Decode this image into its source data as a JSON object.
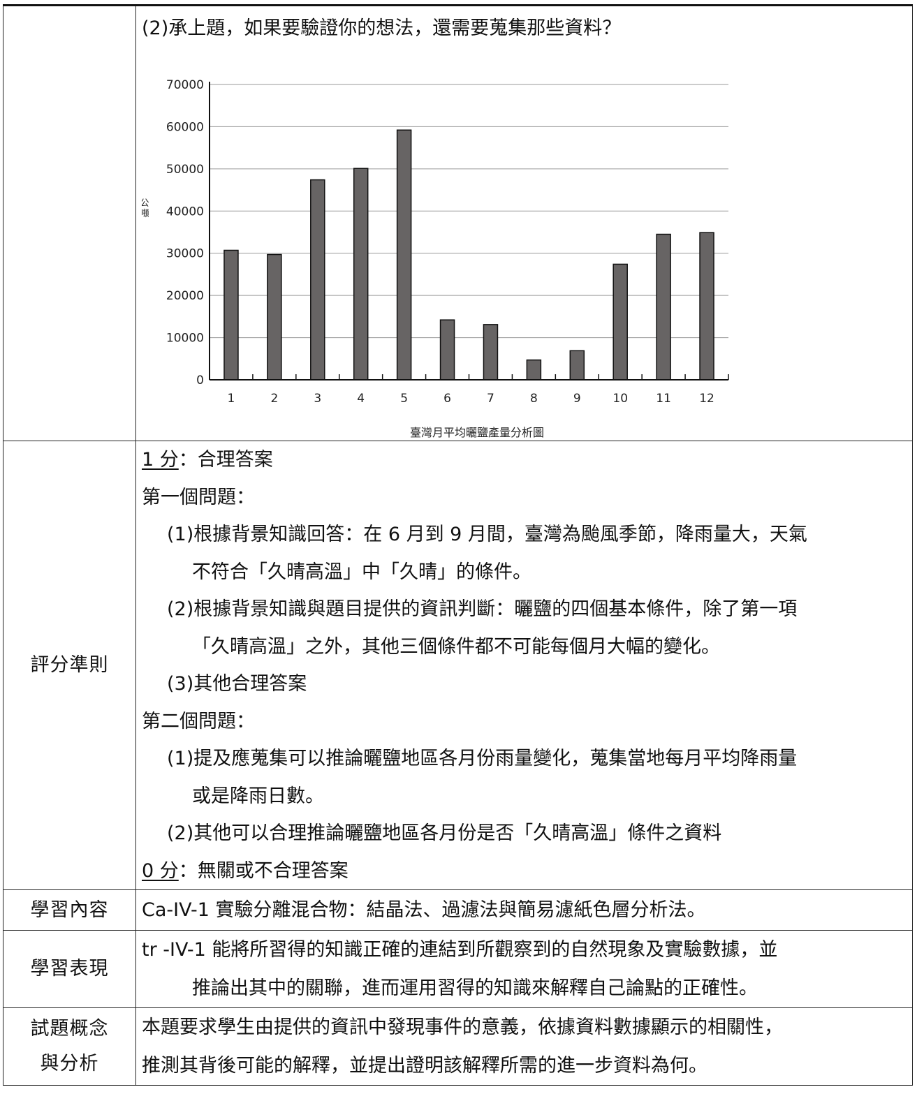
{
  "question": "(2)承上題，如果要驗證你的想法，還需要蒐集那些資料？",
  "chart_data": {
    "type": "bar",
    "title": "臺灣月平均曬鹽產量分析圖",
    "ylabel": "公噸",
    "xlabel": "",
    "categories": [
      "1",
      "2",
      "3",
      "4",
      "5",
      "6",
      "7",
      "8",
      "9",
      "10",
      "11",
      "12"
    ],
    "values": [
      30700,
      29700,
      47400,
      50100,
      59200,
      14200,
      13100,
      4700,
      6900,
      27400,
      34500,
      34900
    ],
    "ylim": [
      0,
      70000
    ],
    "yticks": [
      "0",
      "10000",
      "20000",
      "30000",
      "40000",
      "50000",
      "60000",
      "70000"
    ],
    "grid": true,
    "bar_color": "#676464"
  },
  "rubric": {
    "label": "評分準則",
    "score1": "1 分",
    "score1_text": "：合理答案",
    "q1_title": "第一個問題：",
    "q1_items": [
      "(1)根據背景知識回答：在 6 月到 9 月間，臺灣為颱風季節，降雨量大，天氣",
      "不符合「久晴高溫」中「久晴」的條件。",
      "(2)根據背景知識與題目提供的資訊判斷：曬鹽的四個基本條件，除了第一項",
      "「久晴高溫」之外，其他三個條件都不可能每個月大幅的變化。",
      "(3)其他合理答案"
    ],
    "q2_title": "第二個問題：",
    "q2_items": [
      "(1)提及應蒐集可以推論曬鹽地區各月份雨量變化，蒐集當地每月平均降雨量",
      "或是降雨日數。",
      "(2)其他可以合理推論曬鹽地區各月份是否「久晴高溫」條件之資料"
    ],
    "score0": "0 分",
    "score0_text": "：無關或不合理答案"
  },
  "content": {
    "label": "學習內容",
    "text": "Ca-IV-1  實驗分離混合物：結晶法、過濾法與簡易濾紙色層分析法。"
  },
  "performance": {
    "label": "學習表現",
    "line1": "tr -IV-1  能將所習得的知識正確的連結到所觀察到的自然現象及實驗數據，並",
    "line2": "推論出其中的關聯，進而運用習得的知識來解釋自己論點的正確性。"
  },
  "analysis": {
    "label1": "試題概念",
    "label2": "與分析",
    "line1": "本題要求學生由提供的資訊中發現事件的意義，依據資料數據顯示的相關性，",
    "line2": "推測其背後可能的解釋，並提出證明該解釋所需的進一步資料為何。"
  }
}
